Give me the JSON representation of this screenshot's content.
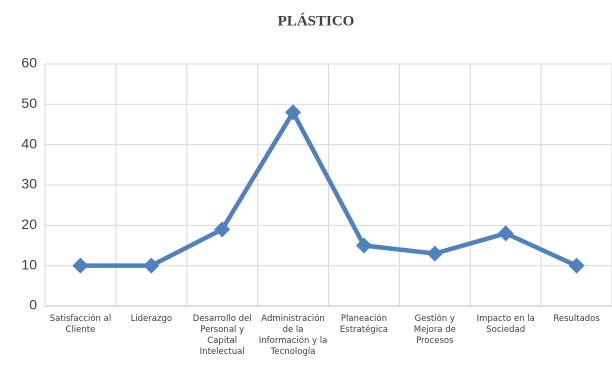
{
  "chart_data": {
    "type": "line",
    "title": "PLÁSTICO",
    "categories": [
      "Satisfacción al Cliente",
      "Liderazgo",
      "Desarrollo del Personal y Capital Intelectual",
      "Administración de la Información y la Tecnología",
      "Planeación Estratégica",
      "Gestión y Mejora de Procesos",
      "Impacto en la Sociedad",
      "Resultados"
    ],
    "series": [
      {
        "name": "PLÁSTICO",
        "color": "#4f81bd",
        "values": [
          10,
          10,
          19,
          48,
          15,
          13,
          18,
          10
        ]
      }
    ],
    "ylim": [
      0,
      60
    ],
    "yticks": [
      0,
      10,
      20,
      30,
      40,
      50,
      60
    ],
    "grid": true
  }
}
